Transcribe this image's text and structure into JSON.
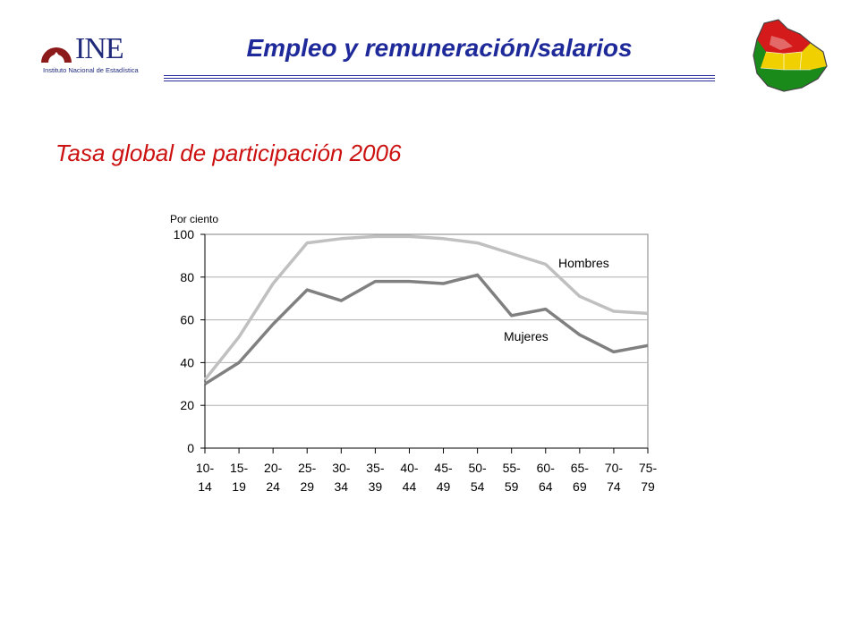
{
  "header": {
    "title": "Empleo y remuneración/salarios"
  },
  "logo": {
    "text": "INE",
    "subtext": "Instituto Nacional de Estadística"
  },
  "subtitle": "Tasa global de participación 2006",
  "colors": {
    "title": "#1f2a9a",
    "subtitle": "#cc1111",
    "hombres": "#c0c0c0",
    "mujeres": "#808080"
  },
  "chart_data": {
    "type": "line",
    "ylabel": "Por ciento",
    "ylim": [
      0,
      100
    ],
    "yticks": [
      0,
      20,
      40,
      60,
      80,
      100
    ],
    "grid": true,
    "categories": [
      [
        "10-",
        "14"
      ],
      [
        "15-",
        "19"
      ],
      [
        "20-",
        "24"
      ],
      [
        "25-",
        "29"
      ],
      [
        "30-",
        "34"
      ],
      [
        "35-",
        "39"
      ],
      [
        "40-",
        "44"
      ],
      [
        "45-",
        "49"
      ],
      [
        "50-",
        "54"
      ],
      [
        "55-",
        "59"
      ],
      [
        "60-",
        "64"
      ],
      [
        "65-",
        "69"
      ],
      [
        "70-",
        "74"
      ],
      [
        "75-",
        "79"
      ]
    ],
    "series": [
      {
        "name": "Hombres",
        "color": "#c0c0c0",
        "values": [
          32,
          52,
          77,
          96,
          98,
          99,
          99,
          98,
          96,
          91,
          86,
          71,
          64,
          63
        ]
      },
      {
        "name": "Mujeres",
        "color": "#808080",
        "values": [
          30,
          40,
          58,
          74,
          69,
          78,
          78,
          77,
          81,
          62,
          65,
          53,
          45,
          48
        ]
      }
    ]
  }
}
